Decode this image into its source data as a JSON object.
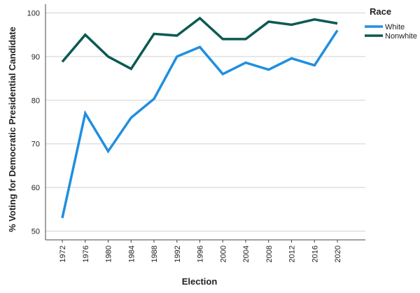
{
  "chart_data": {
    "type": "line",
    "title": "",
    "xlabel": "Election",
    "ylabel": "% Voting for Democratic Presidential Candidate",
    "categories": [
      "1972",
      "1976",
      "1980",
      "1984",
      "1988",
      "1992",
      "1996",
      "2000",
      "2004",
      "2008",
      "2012",
      "2016",
      "2020"
    ],
    "yticks": [
      "50",
      "60",
      "70",
      "80",
      "90",
      "100"
    ],
    "ylim": [
      48,
      102
    ],
    "grid": "horizontal",
    "legend": {
      "title": "Race",
      "placement": "top-right"
    },
    "series": [
      {
        "name": "White",
        "color": "#1f8fe0",
        "values": [
          53,
          77,
          68.3,
          76,
          80.3,
          90,
          92.2,
          86,
          88.6,
          87,
          89.6,
          88,
          96
        ]
      },
      {
        "name": "Nonwhite",
        "color": "#0b5a52",
        "values": [
          88.8,
          95,
          90,
          87.2,
          95.2,
          94.8,
          98.8,
          94,
          94,
          98,
          97.3,
          98.5,
          97.6
        ]
      }
    ]
  }
}
